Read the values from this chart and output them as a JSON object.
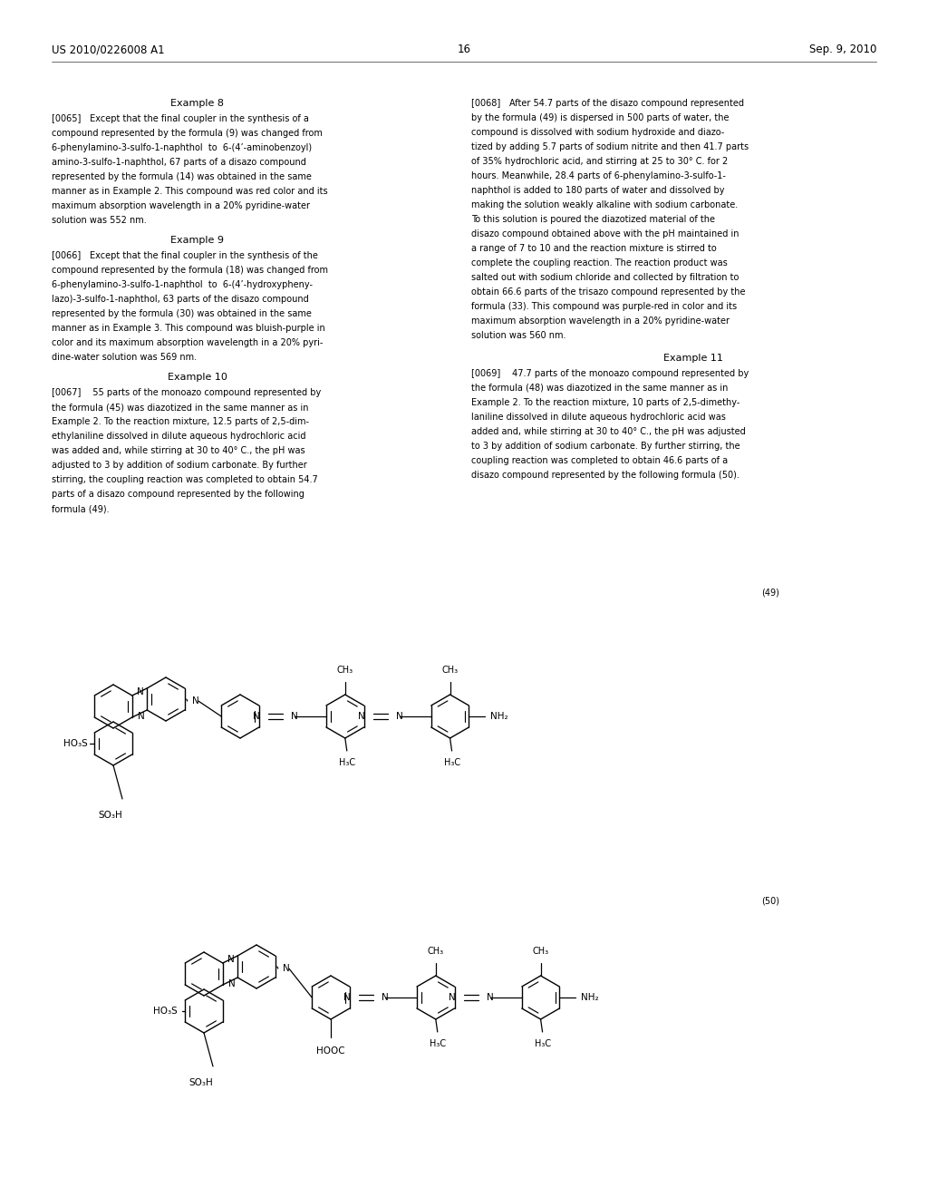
{
  "page_header_left": "US 2010/0226008 A1",
  "page_header_right": "Sep. 9, 2010",
  "page_number": "16",
  "bg": "#ffffff",
  "fg": "#000000",
  "left_col_lines": [
    [
      "center",
      218,
      109,
      "Example 8",
      8.0
    ],
    [
      "left",
      57,
      126,
      "[0065] Except that the final coupler in the synthesis of a",
      7.0
    ],
    [
      "left",
      57,
      142,
      "compound represented by the formula (9) was changed from",
      7.0
    ],
    [
      "left",
      57,
      158,
      "6-phenylamino-3-sulfo-1-naphthol  to  6-(4’-aminobenzoyl)",
      7.0
    ],
    [
      "left",
      57,
      174,
      "amino-3-sulfo-1-naphthol, 67 parts of a disazo compound",
      7.0
    ],
    [
      "left",
      57,
      190,
      "represented by the formula (14) was obtained in the same",
      7.0
    ],
    [
      "left",
      57,
      206,
      "manner as in Example 2. This compound was red color and its",
      7.0
    ],
    [
      "left",
      57,
      222,
      "maximum absorption wavelength in a 20% pyridine-water",
      7.0
    ],
    [
      "left",
      57,
      238,
      "solution was 552 nm.",
      7.0
    ],
    [
      "center",
      218,
      260,
      "Example 9",
      8.0
    ],
    [
      "left",
      57,
      277,
      "[0066] Except that the final coupler in the synthesis of the",
      7.0
    ],
    [
      "left",
      57,
      293,
      "compound represented by the formula (18) was changed from",
      7.0
    ],
    [
      "left",
      57,
      309,
      "6-phenylamino-3-sulfo-1-naphthol  to  6-(4’-hydroxypheny-",
      7.0
    ],
    [
      "left",
      57,
      325,
      "lazo)-3-sulfo-1-naphthol, 63 parts of the disazo compound",
      7.0
    ],
    [
      "left",
      57,
      341,
      "represented by the formula (30) was obtained in the same",
      7.0
    ],
    [
      "left",
      57,
      357,
      "manner as in Example 3. This compound was bluish-purple in",
      7.0
    ],
    [
      "left",
      57,
      373,
      "color and its maximum absorption wavelength in a 20% pyri-",
      7.0
    ],
    [
      "left",
      57,
      389,
      "dine-water solution was 569 nm.",
      7.0
    ],
    [
      "center",
      218,
      411,
      "Example 10",
      8.0
    ],
    [
      "left",
      57,
      428,
      "[0067]  55 parts of the monoazo compound represented by",
      7.0
    ],
    [
      "left",
      57,
      444,
      "the formula (45) was diazotized in the same manner as in",
      7.0
    ],
    [
      "left",
      57,
      460,
      "Example 2. To the reaction mixture, 12.5 parts of 2,5-dim-",
      7.0
    ],
    [
      "left",
      57,
      476,
      "ethylaniline dissolved in dilute aqueous hydrochloric acid",
      7.0
    ],
    [
      "left",
      57,
      492,
      "was added and, while stirring at 30 to 40° C., the pH was",
      7.0
    ],
    [
      "left",
      57,
      508,
      "adjusted to 3 by addition of sodium carbonate. By further",
      7.0
    ],
    [
      "left",
      57,
      524,
      "stirring, the coupling reaction was completed to obtain 54.7",
      7.0
    ],
    [
      "left",
      57,
      540,
      "parts of a disazo compound represented by the following",
      7.0
    ],
    [
      "left",
      57,
      556,
      "formula (49).",
      7.0
    ]
  ],
  "right_col_lines": [
    [
      "left",
      520,
      109,
      "[0068] After 54.7 parts of the disazo compound represented",
      7.0
    ],
    [
      "left",
      520,
      125,
      "by the formula (49) is dispersed in 500 parts of water, the",
      7.0
    ],
    [
      "left",
      520,
      141,
      "compound is dissolved with sodium hydroxide and diazo-",
      7.0
    ],
    [
      "left",
      520,
      157,
      "tized by adding 5.7 parts of sodium nitrite and then 41.7 parts",
      7.0
    ],
    [
      "left",
      520,
      173,
      "of 35% hydrochloric acid, and stirring at 25 to 30° C. for 2",
      7.0
    ],
    [
      "left",
      520,
      189,
      "hours. Meanwhile, 28.4 parts of 6-phenylamino-3-sulfo-1-",
      7.0
    ],
    [
      "left",
      520,
      205,
      "naphthol is added to 180 parts of water and dissolved by",
      7.0
    ],
    [
      "left",
      520,
      221,
      "making the solution weakly alkaline with sodium carbonate.",
      7.0
    ],
    [
      "left",
      520,
      237,
      "To this solution is poured the diazotized material of the",
      7.0
    ],
    [
      "left",
      520,
      253,
      "disazo compound obtained above with the pH maintained in",
      7.0
    ],
    [
      "left",
      520,
      269,
      "a range of 7 to 10 and the reaction mixture is stirred to",
      7.0
    ],
    [
      "left",
      520,
      285,
      "complete the coupling reaction. The reaction product was",
      7.0
    ],
    [
      "left",
      520,
      301,
      "salted out with sodium chloride and collected by filtration to",
      7.0
    ],
    [
      "left",
      520,
      317,
      "obtain 66.6 parts of the trisazo compound represented by the",
      7.0
    ],
    [
      "left",
      520,
      333,
      "formula (33). This compound was purple-red in color and its",
      7.0
    ],
    [
      "left",
      520,
      349,
      "maximum absorption wavelength in a 20% pyridine-water",
      7.0
    ],
    [
      "left",
      520,
      365,
      "solution was 560 nm.",
      7.0
    ],
    [
      "center",
      765,
      390,
      "Example 11",
      8.0
    ],
    [
      "left",
      520,
      407,
      "[0069]  47.7 parts of the monoazo compound represented by",
      7.0
    ],
    [
      "left",
      520,
      423,
      "the formula (48) was diazotized in the same manner as in",
      7.0
    ],
    [
      "left",
      520,
      439,
      "Example 2. To the reaction mixture, 10 parts of 2,5-dimethy-",
      7.0
    ],
    [
      "left",
      520,
      455,
      "laniline dissolved in dilute aqueous hydrochloric acid was",
      7.0
    ],
    [
      "left",
      520,
      471,
      "added and, while stirring at 30 to 40° C., the pH was adjusted",
      7.0
    ],
    [
      "left",
      520,
      487,
      "to 3 by addition of sodium carbonate. By further stirring, the",
      7.0
    ],
    [
      "left",
      520,
      503,
      "coupling reaction was completed to obtain 46.6 parts of a",
      7.0
    ],
    [
      "left",
      520,
      519,
      "disazo compound represented by the following formula (50).",
      7.0
    ]
  ]
}
